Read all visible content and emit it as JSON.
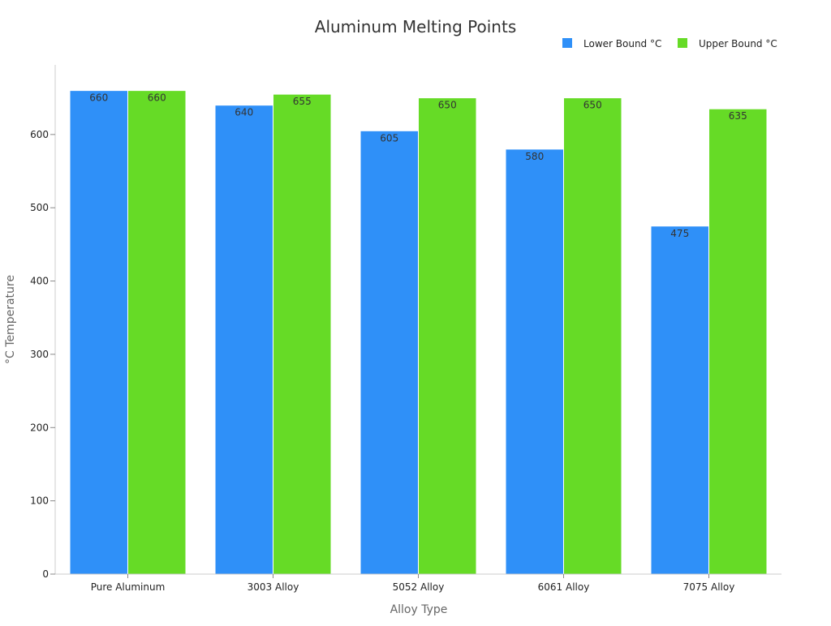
{
  "chart_data": {
    "type": "bar",
    "title": "Aluminum Melting Points",
    "xlabel": "Alloy Type",
    "ylabel": "°C Temperature",
    "categories": [
      "Pure Aluminum",
      "3003 Alloy",
      "5052 Alloy",
      "6061 Alloy",
      "7075 Alloy"
    ],
    "series": [
      {
        "name": "Lower Bound °C",
        "color": "#2f90f8",
        "values": [
          660,
          640,
          605,
          580,
          475
        ]
      },
      {
        "name": "Upper Bound °C",
        "color": "#66db26",
        "values": [
          660,
          655,
          650,
          650,
          635
        ]
      }
    ],
    "ylim": [
      0,
      695
    ],
    "yticks": [
      0,
      100,
      200,
      300,
      400,
      500,
      600
    ],
    "legend_position": "top-right",
    "grid": false,
    "data_labels": true
  }
}
